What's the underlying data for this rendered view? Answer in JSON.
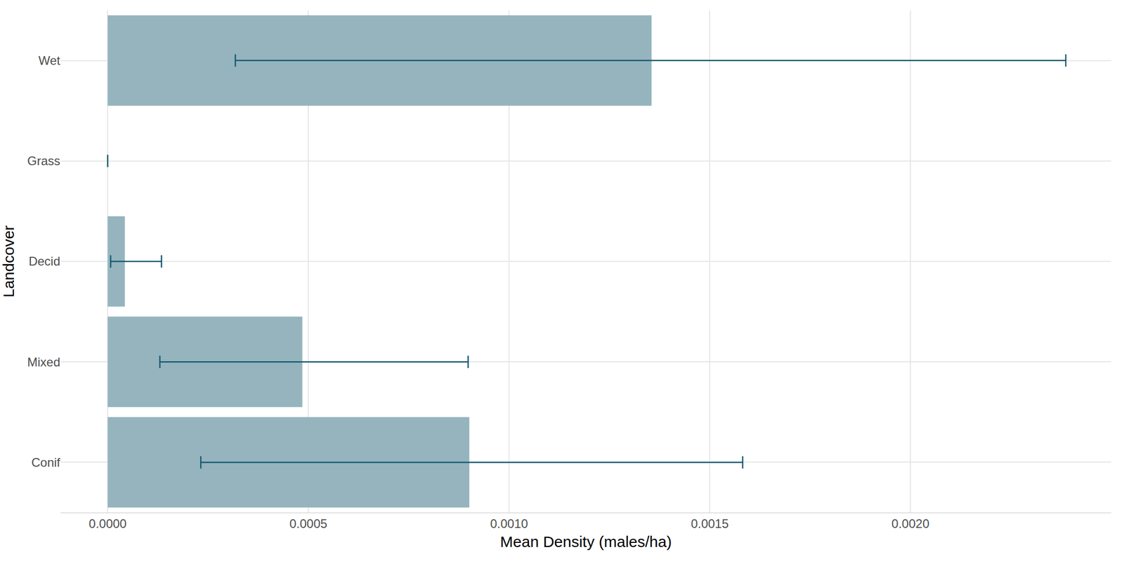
{
  "chart_data": {
    "type": "bar",
    "orientation": "horizontal",
    "x_label": "Mean Density (males/ha)",
    "y_label": "Landcover",
    "categories": [
      "Conif",
      "Mixed",
      "Decid",
      "Grass",
      "Wet"
    ],
    "values": [
      0.000901,
      0.000485,
      4.28e-05,
      0,
      0.001355
    ],
    "error_lower": [
      0.000232,
      0.00013,
      7.4e-06,
      0,
      0.000318
    ],
    "error_upper": [
      0.001582,
      0.000898,
      0.000134,
      0,
      0.002387
    ],
    "color": "#95b4be",
    "xlim": [
      -0.000117,
      0.0025
    ],
    "xticks": [
      {
        "value": 0,
        "label": "0.0000"
      },
      {
        "value": 0.0005,
        "label": "0.0005"
      },
      {
        "value": 0.001,
        "label": "0.0010"
      },
      {
        "value": 0.0015,
        "label": "0.0015"
      },
      {
        "value": 0.002,
        "label": "0.0020"
      }
    ],
    "grid": true
  }
}
